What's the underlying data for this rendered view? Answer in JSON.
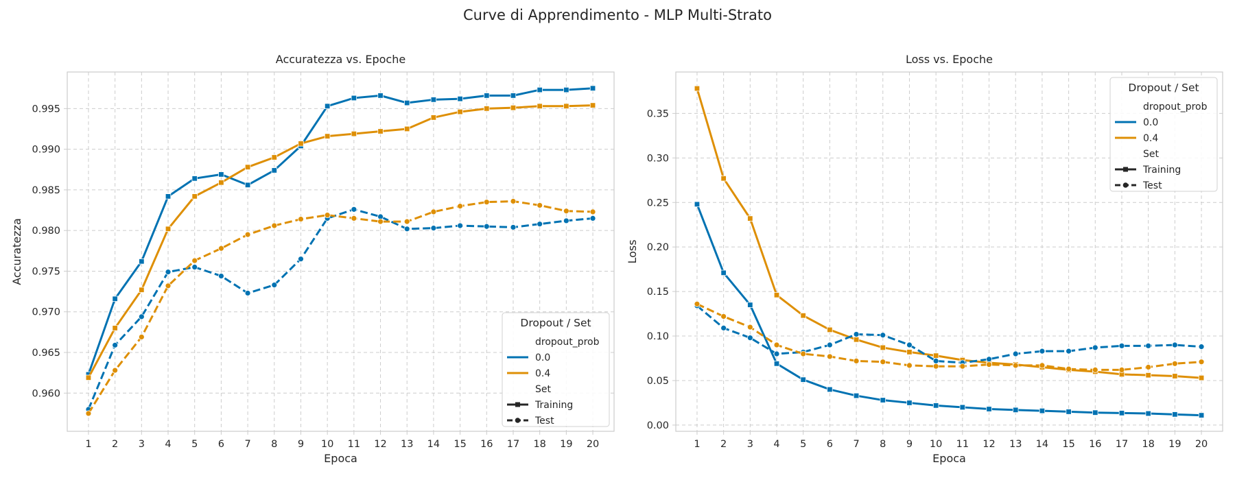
{
  "figure": {
    "title": "Curve di Apprendimento - MLP Multi-Strato"
  },
  "colors": {
    "series_0_0": "#0072b2",
    "series_0_4": "#de8f05",
    "grid": "#cccccc",
    "frame": "#cccccc",
    "legend_line": "#262626"
  },
  "legend": {
    "title": "Dropout / Set",
    "group1_title": "dropout_prob",
    "group1_items": [
      "0.0",
      "0.4"
    ],
    "group2_title": "Set",
    "group2_items": [
      "Training",
      "Test"
    ]
  },
  "chart_data": [
    {
      "type": "line",
      "title": "Accuratezza vs. Epoche",
      "xlabel": "Epoca",
      "ylabel": "Accuratezza",
      "x": [
        1,
        2,
        3,
        4,
        5,
        6,
        7,
        8,
        9,
        10,
        11,
        12,
        13,
        14,
        15,
        16,
        17,
        18,
        19,
        20
      ],
      "xlim": [
        0.2,
        20.8
      ],
      "ylim": [
        0.9553,
        0.9995
      ],
      "yticks": [
        0.96,
        0.965,
        0.97,
        0.975,
        0.98,
        0.985,
        0.99,
        0.995
      ],
      "ytick_labels": [
        "0.960",
        "0.965",
        "0.970",
        "0.975",
        "0.980",
        "0.985",
        "0.990",
        "0.995"
      ],
      "grid": true,
      "legend_position": "lower-right",
      "series": [
        {
          "dropout": "0.0",
          "set": "Training",
          "color": "#0072b2",
          "linestyle": "solid",
          "marker": "square",
          "values": [
            0.9623,
            0.9716,
            0.9762,
            0.9842,
            0.9864,
            0.9869,
            0.9856,
            0.9874,
            0.9904,
            0.9953,
            0.9963,
            0.9966,
            0.9957,
            0.9961,
            0.9962,
            0.9966,
            0.9966,
            0.9973,
            0.9973,
            0.9975
          ]
        },
        {
          "dropout": "0.4",
          "set": "Training",
          "color": "#de8f05",
          "linestyle": "solid",
          "marker": "square",
          "values": [
            0.9619,
            0.968,
            0.9727,
            0.9802,
            0.9842,
            0.9859,
            0.9878,
            0.989,
            0.9907,
            0.9916,
            0.9919,
            0.9922,
            0.9925,
            0.9939,
            0.9946,
            0.995,
            0.9951,
            0.9953,
            0.9953,
            0.9954
          ]
        },
        {
          "dropout": "0.0",
          "set": "Test",
          "color": "#0072b2",
          "linestyle": "dashed",
          "marker": "circle",
          "values": [
            0.958,
            0.9659,
            0.9694,
            0.9749,
            0.9755,
            0.9744,
            0.9723,
            0.9733,
            0.9765,
            0.9815,
            0.9826,
            0.9817,
            0.9802,
            0.9803,
            0.9806,
            0.9805,
            0.9804,
            0.9808,
            0.9812,
            0.9815
          ]
        },
        {
          "dropout": "0.4",
          "set": "Test",
          "color": "#de8f05",
          "linestyle": "dashed",
          "marker": "circle",
          "values": [
            0.9575,
            0.9628,
            0.9669,
            0.9732,
            0.9763,
            0.9778,
            0.9795,
            0.9806,
            0.9814,
            0.9819,
            0.9815,
            0.9811,
            0.9811,
            0.9823,
            0.983,
            0.9835,
            0.9836,
            0.9831,
            0.9824,
            0.9823
          ]
        }
      ]
    },
    {
      "type": "line",
      "title": "Loss vs. Epoche",
      "xlabel": "Epoca",
      "ylabel": "Loss",
      "x": [
        1,
        2,
        3,
        4,
        5,
        6,
        7,
        8,
        9,
        10,
        11,
        12,
        13,
        14,
        15,
        16,
        17,
        18,
        19,
        20
      ],
      "xlim": [
        0.2,
        20.8
      ],
      "ylim": [
        -0.007,
        0.3965
      ],
      "yticks": [
        0.0,
        0.05,
        0.1,
        0.15,
        0.2,
        0.25,
        0.3,
        0.35
      ],
      "ytick_labels": [
        "0.00",
        "0.05",
        "0.10",
        "0.15",
        "0.20",
        "0.25",
        "0.30",
        "0.35"
      ],
      "grid": true,
      "legend_position": "upper-right",
      "series": [
        {
          "dropout": "0.0",
          "set": "Training",
          "color": "#0072b2",
          "linestyle": "solid",
          "marker": "square",
          "values": [
            0.248,
            0.171,
            0.135,
            0.069,
            0.051,
            0.04,
            0.033,
            0.028,
            0.025,
            0.022,
            0.02,
            0.018,
            0.017,
            0.016,
            0.015,
            0.014,
            0.0135,
            0.013,
            0.012,
            0.011
          ]
        },
        {
          "dropout": "0.4",
          "set": "Training",
          "color": "#de8f05",
          "linestyle": "solid",
          "marker": "square",
          "values": [
            0.378,
            0.277,
            0.232,
            0.146,
            0.123,
            0.107,
            0.096,
            0.087,
            0.082,
            0.078,
            0.073,
            0.07,
            0.068,
            0.065,
            0.062,
            0.06,
            0.057,
            0.056,
            0.055,
            0.053
          ]
        },
        {
          "dropout": "0.0",
          "set": "Test",
          "color": "#0072b2",
          "linestyle": "dashed",
          "marker": "circle",
          "values": [
            0.134,
            0.109,
            0.098,
            0.08,
            0.082,
            0.09,
            0.102,
            0.101,
            0.09,
            0.072,
            0.07,
            0.074,
            0.08,
            0.083,
            0.083,
            0.087,
            0.089,
            0.089,
            0.09,
            0.088
          ]
        },
        {
          "dropout": "0.4",
          "set": "Test",
          "color": "#de8f05",
          "linestyle": "dashed",
          "marker": "circle",
          "values": [
            0.136,
            0.122,
            0.11,
            0.09,
            0.08,
            0.077,
            0.072,
            0.071,
            0.067,
            0.066,
            0.066,
            0.068,
            0.067,
            0.067,
            0.063,
            0.062,
            0.062,
            0.065,
            0.069,
            0.071
          ]
        }
      ]
    }
  ]
}
